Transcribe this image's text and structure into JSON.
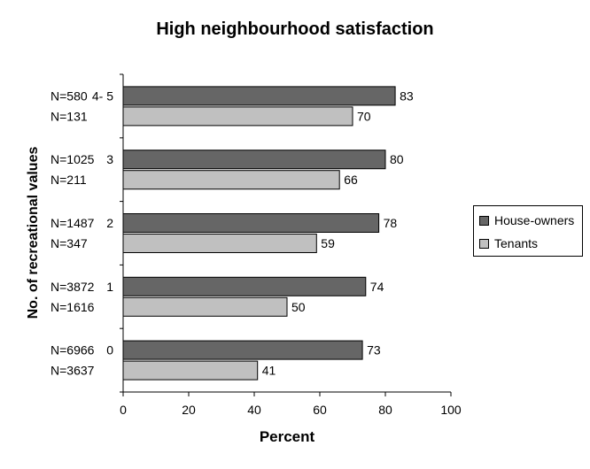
{
  "chart_data": {
    "type": "bar",
    "orientation": "horizontal",
    "title": "High neighbourhood satisfaction",
    "xlabel": "Percent",
    "ylabel": "No. of recreational values",
    "xlim": [
      0,
      100
    ],
    "xticks": [
      0,
      20,
      40,
      60,
      80,
      100
    ],
    "grid": false,
    "legend_position": "right",
    "categories": [
      "4- 5",
      "3",
      "2",
      "1",
      "0"
    ],
    "series": [
      {
        "name": "House-owners",
        "color": "#666666",
        "values": [
          83,
          80,
          78,
          74,
          73
        ],
        "n_labels": [
          "N=580",
          "N=1025",
          "N=1487",
          "N=3872",
          "N=6966"
        ]
      },
      {
        "name": "Tenants",
        "color": "#c0c0c0",
        "values": [
          70,
          66,
          59,
          50,
          41
        ],
        "n_labels": [
          "N=131",
          "N=211",
          "N=347",
          "N=1616",
          "N=3637"
        ]
      }
    ]
  }
}
